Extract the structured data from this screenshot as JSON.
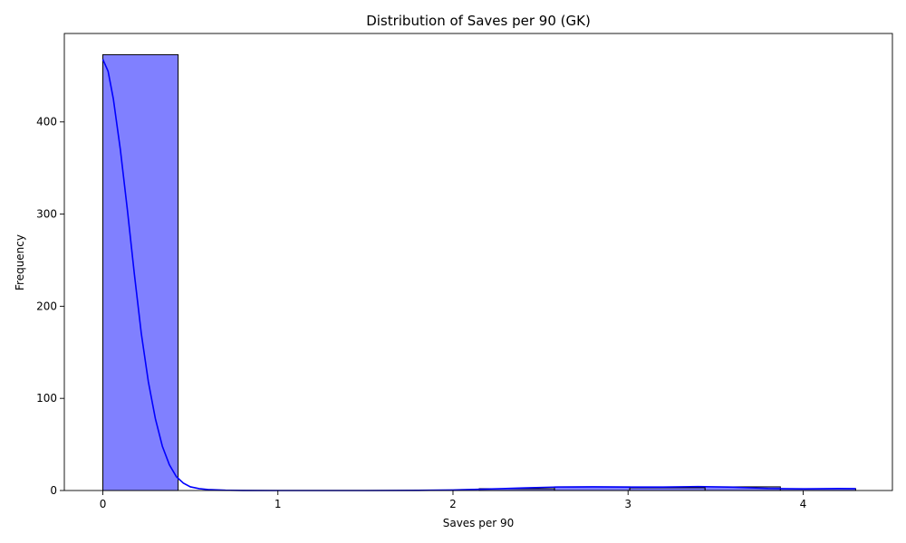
{
  "chart_data": {
    "type": "bar",
    "title": "Distribution of Saves per 90 (GK)",
    "xlabel": "Saves per 90",
    "ylabel": "Frequency",
    "xlim": [
      -0.22,
      4.51
    ],
    "ylim": [
      0,
      496
    ],
    "xticks": [
      0,
      1,
      2,
      3,
      4
    ],
    "yticks": [
      0,
      100,
      200,
      300,
      400
    ],
    "bins": [
      {
        "x0": 0.0,
        "x1": 0.43,
        "count": 473
      },
      {
        "x0": 0.43,
        "x1": 0.86,
        "count": 0
      },
      {
        "x0": 0.86,
        "x1": 1.29,
        "count": 0
      },
      {
        "x0": 1.29,
        "x1": 1.72,
        "count": 0
      },
      {
        "x0": 1.72,
        "x1": 2.15,
        "count": 0
      },
      {
        "x0": 2.15,
        "x1": 2.58,
        "count": 2
      },
      {
        "x0": 2.58,
        "x1": 3.01,
        "count": 4
      },
      {
        "x0": 3.01,
        "x1": 3.44,
        "count": 3
      },
      {
        "x0": 3.44,
        "x1": 3.87,
        "count": 4
      },
      {
        "x0": 3.87,
        "x1": 4.3,
        "count": 2
      }
    ],
    "kde": {
      "x": [
        0,
        0.03,
        0.06,
        0.1,
        0.14,
        0.18,
        0.22,
        0.26,
        0.3,
        0.34,
        0.38,
        0.42,
        0.46,
        0.5,
        0.55,
        0.6,
        0.7,
        0.8,
        1.0,
        1.5,
        1.8,
        2.0,
        2.2,
        2.4,
        2.6,
        2.8,
        3.0,
        3.2,
        3.4,
        3.6,
        3.8,
        4.0,
        4.2,
        4.3
      ],
      "y": [
        468,
        455,
        425,
        370,
        305,
        235,
        170,
        118,
        78,
        48,
        28,
        15,
        8,
        4,
        2,
        1,
        0.3,
        0.1,
        0,
        0,
        0.2,
        0.6,
        1.6,
        2.8,
        3.8,
        4.0,
        3.7,
        3.7,
        4.3,
        3.6,
        2.2,
        1.8,
        2.1,
        2.0
      ]
    },
    "bar_color": "#8080ff",
    "bar_edge_color": "#000000",
    "kde_color": "#0000ff",
    "grid": false,
    "legend": "none"
  }
}
